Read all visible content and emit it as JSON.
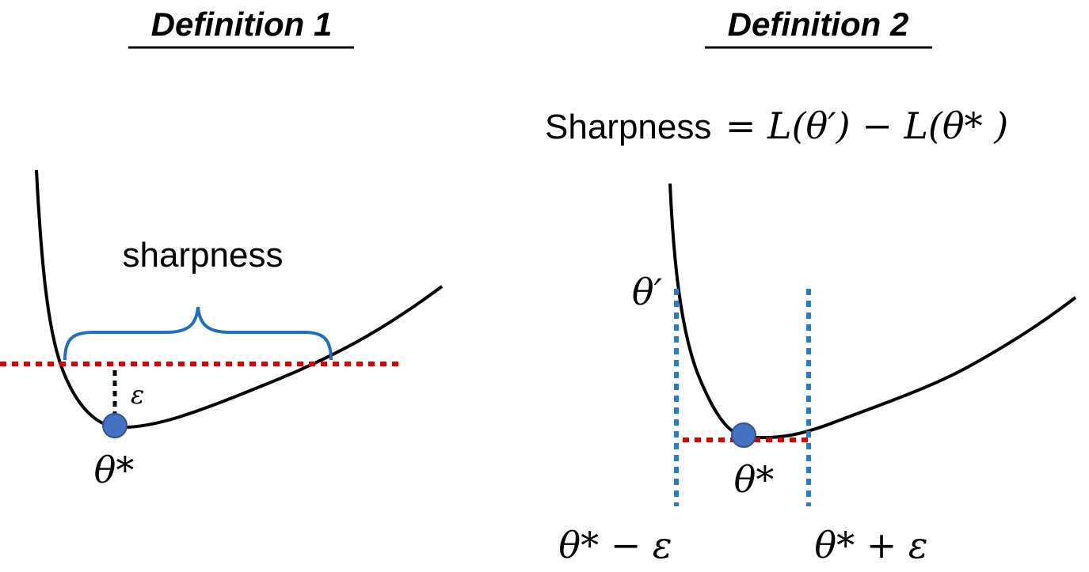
{
  "definition1": {
    "title": "Definition 1",
    "brace_label": "sharpness",
    "epsilon_label": "ε",
    "minimum_label": "θ*"
  },
  "definition2": {
    "title": "Definition 2",
    "formula": {
      "word": "Sharpness",
      "rhs": "= L(θ′) − L(θ* )"
    },
    "theta_prime_label": "θ′",
    "minimum_label": "θ*",
    "left_bound_label": "θ* − ε",
    "right_bound_label": "θ* + ε"
  },
  "colors": {
    "curve": "#000000",
    "minimum_dot": "#4472c4",
    "dashed_red": "#e00000",
    "dashed_blue": "#1f7fd0",
    "brace": "#1f6fbf"
  }
}
